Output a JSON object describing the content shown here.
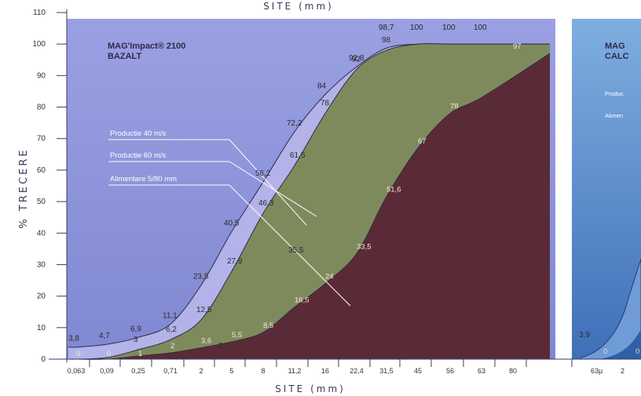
{
  "chart_data": [
    {
      "type": "area",
      "title": "MAG'Impact® 2100",
      "subtitle": "BAZALT",
      "xlabel": "SITE (mm)",
      "x_top_label": "SITE (mm)",
      "ylabel": "% TRECERE",
      "ylim": [
        0,
        110
      ],
      "yticks": [
        0,
        10,
        20,
        30,
        40,
        50,
        60,
        70,
        80,
        90,
        100,
        110
      ],
      "categories": [
        "0,063",
        "0,09",
        "0,25",
        "0,71",
        "2",
        "5",
        "8",
        "11,2",
        "16",
        "22,4",
        "31,5",
        "45",
        "56",
        "63",
        "80"
      ],
      "series": [
        {
          "name": "Productie 40 m/s",
          "color": "#b3b3ea",
          "points": [
            {
              "x": "0,063",
              "y": 3.8,
              "label": "3,8"
            },
            {
              "x": "0,09",
              "y": 4.7,
              "label": "4,7"
            },
            {
              "x": "0,25",
              "y": 6.9,
              "label": "6,9"
            },
            {
              "x": "0,71",
              "y": 11.1,
              "label": "11,1"
            },
            {
              "x": "2",
              "y": 23.5,
              "label": "23,5"
            },
            {
              "x": "5",
              "y": 40.5,
              "label": "40,5"
            },
            {
              "x": "8",
              "y": 56.2,
              "label": "56,2"
            },
            {
              "x": "11,2",
              "y": 72.2,
              "label": "72,2"
            },
            {
              "x": "16",
              "y": 84,
              "label": "84"
            },
            {
              "x": "22,4",
              "y": 92.8,
              "label": "92,8"
            },
            {
              "x": "31,5",
              "y": 98.7,
              "label": "98,7"
            },
            {
              "x": "45",
              "y": 100,
              "label": "100"
            },
            {
              "x": "56",
              "y": 100,
              "label": "100"
            },
            {
              "x": "63",
              "y": 100,
              "label": "100"
            },
            {
              "x": "80",
              "y": 100,
              "label": ""
            }
          ]
        },
        {
          "name": "Productie 60 m/s",
          "color": "#7f8a5c",
          "points": [
            {
              "x": "0,063",
              "y": 0,
              "label": ""
            },
            {
              "x": "0,09",
              "y": 0.5,
              "label": ""
            },
            {
              "x": "0,25",
              "y": 3,
              "label": "3"
            },
            {
              "x": "0,71",
              "y": 6.2,
              "label": "6,2"
            },
            {
              "x": "2",
              "y": 12.5,
              "label": "12,5"
            },
            {
              "x": "5",
              "y": 27.9,
              "label": "27,9"
            },
            {
              "x": "8",
              "y": 46.3,
              "label": "46,3"
            },
            {
              "x": "11,2",
              "y": 61.5,
              "label": "61,5"
            },
            {
              "x": "16",
              "y": 78,
              "label": "78"
            },
            {
              "x": "22,4",
              "y": 92,
              "label": "92"
            },
            {
              "x": "31,5",
              "y": 98,
              "label": "98"
            },
            {
              "x": "45",
              "y": 100,
              "label": ""
            },
            {
              "x": "56",
              "y": 100,
              "label": ""
            },
            {
              "x": "63",
              "y": 100,
              "label": ""
            },
            {
              "x": "80",
              "y": 100,
              "label": ""
            }
          ]
        },
        {
          "name": "Alimentare 5/80 mm",
          "color": "#5a2b36",
          "points": [
            {
              "x": "0,063",
              "y": 0,
              "label": "0"
            },
            {
              "x": "0,09",
              "y": 0,
              "label": "0"
            },
            {
              "x": "0,25",
              "y": 1,
              "label": "1"
            },
            {
              "x": "0,71",
              "y": 2,
              "label": "2"
            },
            {
              "x": "2",
              "y": 3.6,
              "label": "3,6"
            },
            {
              "x": "5",
              "y": 5.5,
              "label": "5,5"
            },
            {
              "x": "8",
              "y": 8.5,
              "label": "8,5"
            },
            {
              "x": "11,2",
              "y": 16.5,
              "label": "16,5"
            },
            {
              "x": "16",
              "y": 24,
              "label": "24"
            },
            {
              "x": "22,4",
              "y": 33.5,
              "label": "33,5"
            },
            {
              "x": "31,5",
              "y": 51.6,
              "label": "51,6"
            },
            {
              "x": "45",
              "y": 67,
              "label": "67"
            },
            {
              "x": "56",
              "y": 78,
              "label": "78"
            },
            {
              "x": "63",
              "y": 83,
              "label": ""
            },
            {
              "x": "80",
              "y": 97,
              "label": "97"
            }
          ]
        }
      ],
      "extra_labels": [
        "2",
        "35,5"
      ],
      "background": "#8e96da",
      "legend": "left-center"
    },
    {
      "type": "area",
      "title": "MAG",
      "subtitle": "CALC",
      "xlabel": "",
      "categories": [
        "63µ",
        "2"
      ],
      "legend_items": [
        "Produc",
        "Alimen"
      ],
      "visible_labels": [
        "3,9",
        "0",
        "0",
        "2"
      ],
      "background": "#7a9ad0",
      "partial": true
    }
  ],
  "units": {
    "mm": "(mm)"
  }
}
